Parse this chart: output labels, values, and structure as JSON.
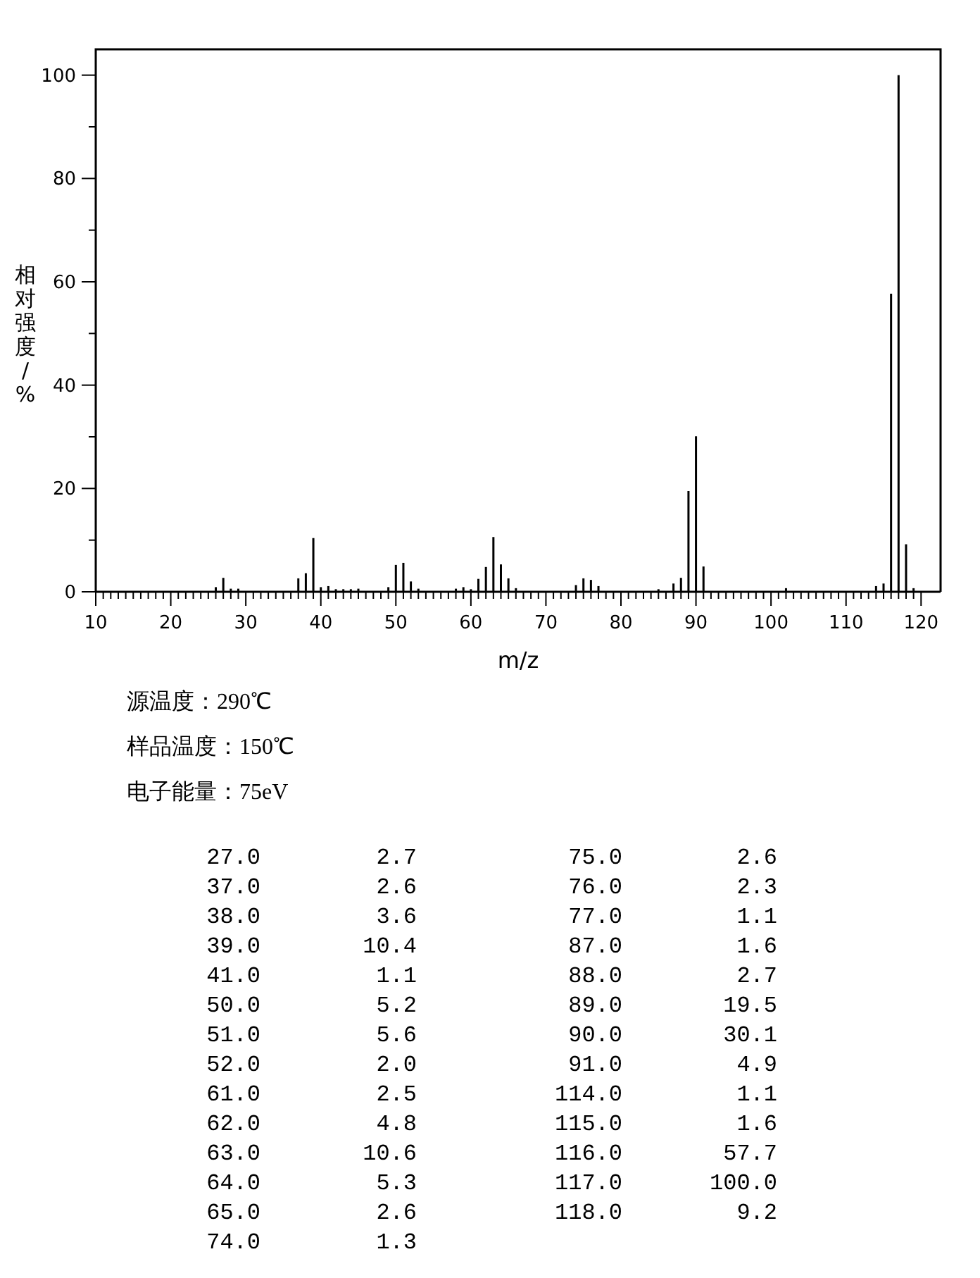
{
  "chart_data": [
    {
      "type": "bar",
      "xlabel": "m/z",
      "ylabel": "相对强度/%",
      "x": [
        26,
        27,
        28,
        29,
        37,
        38,
        39,
        40,
        41,
        42,
        43,
        44,
        45,
        49,
        50,
        51,
        52,
        53,
        58,
        59,
        60,
        61,
        62,
        63,
        64,
        65,
        66,
        74,
        75,
        76,
        77,
        85,
        87,
        88,
        89,
        90,
        91,
        102,
        114,
        115,
        116,
        117,
        118,
        119
      ],
      "values": [
        0.9,
        2.7,
        0.6,
        0.6,
        2.6,
        3.6,
        10.4,
        0.9,
        1.1,
        0.5,
        0.5,
        0.5,
        0.6,
        0.9,
        5.2,
        5.6,
        2.0,
        0.6,
        0.6,
        0.9,
        0.5,
        2.5,
        4.8,
        10.6,
        5.3,
        2.6,
        0.7,
        1.3,
        2.6,
        2.3,
        1.1,
        0.5,
        1.6,
        2.7,
        19.5,
        30.1,
        4.9,
        0.7,
        1.1,
        1.6,
        57.7,
        100.0,
        9.2,
        0.7
      ],
      "color": "#000000",
      "xlim": [
        10,
        122.6
      ],
      "ylim": [
        0,
        105
      ],
      "xticks": [
        10,
        {
          "value": 11,
          "label": null
        },
        {
          "value": 12,
          "label": null
        },
        {
          "value": 13,
          "label": null
        },
        {
          "value": 14,
          "label": null
        },
        {
          "value": 15,
          "label": null
        },
        {
          "value": 16,
          "label": null
        },
        {
          "value": 17,
          "label": null
        },
        {
          "value": 18,
          "label": null
        },
        {
          "value": 19,
          "label": null
        },
        20,
        {
          "value": 21,
          "label": null
        },
        {
          "value": 22,
          "label": null
        },
        {
          "value": 23,
          "label": null
        },
        {
          "value": 24,
          "label": null
        },
        {
          "value": 25,
          "label": null
        },
        {
          "value": 26,
          "label": null
        },
        {
          "value": 27,
          "label": null
        },
        {
          "value": 28,
          "label": null
        },
        {
          "value": 29,
          "label": null
        },
        30,
        {
          "value": 31,
          "label": null
        },
        {
          "value": 32,
          "label": null
        },
        {
          "value": 33,
          "label": null
        },
        {
          "value": 34,
          "label": null
        },
        {
          "value": 35,
          "label": null
        },
        {
          "value": 36,
          "label": null
        },
        {
          "value": 37,
          "label": null
        },
        {
          "value": 38,
          "label": null
        },
        {
          "value": 39,
          "label": null
        },
        40,
        {
          "value": 41,
          "label": null
        },
        {
          "value": 42,
          "label": null
        },
        {
          "value": 43,
          "label": null
        },
        {
          "value": 44,
          "label": null
        },
        {
          "value": 45,
          "label": null
        },
        {
          "value": 46,
          "label": null
        },
        {
          "value": 47,
          "label": null
        },
        {
          "value": 48,
          "label": null
        },
        {
          "value": 49,
          "label": null
        },
        50,
        {
          "value": 51,
          "label": null
        },
        {
          "value": 52,
          "label": null
        },
        {
          "value": 53,
          "label": null
        },
        {
          "value": 54,
          "label": null
        },
        {
          "value": 55,
          "label": null
        },
        {
          "value": 56,
          "label": null
        },
        {
          "value": 57,
          "label": null
        },
        {
          "value": 58,
          "label": null
        },
        {
          "value": 59,
          "label": null
        },
        60,
        {
          "value": 61,
          "label": null
        },
        {
          "value": 62,
          "label": null
        },
        {
          "value": 63,
          "label": null
        },
        {
          "value": 64,
          "label": null
        },
        {
          "value": 65,
          "label": null
        },
        {
          "value": 66,
          "label": null
        },
        {
          "value": 67,
          "label": null
        },
        {
          "value": 68,
          "label": null
        },
        {
          "value": 69,
          "label": null
        },
        70,
        {
          "value": 71,
          "label": null
        },
        {
          "value": 72,
          "label": null
        },
        {
          "value": 73,
          "label": null
        },
        {
          "value": 74,
          "label": null
        },
        {
          "value": 75,
          "label": null
        },
        {
          "value": 76,
          "label": null
        },
        {
          "value": 77,
          "label": null
        },
        {
          "value": 78,
          "label": null
        },
        {
          "value": 79,
          "label": null
        },
        80,
        {
          "value": 81,
          "label": null
        },
        {
          "value": 82,
          "label": null
        },
        {
          "value": 83,
          "label": null
        },
        {
          "value": 84,
          "label": null
        },
        {
          "value": 85,
          "label": null
        },
        {
          "value": 86,
          "label": null
        },
        {
          "value": 87,
          "label": null
        },
        {
          "value": 88,
          "label": null
        },
        {
          "value": 89,
          "label": null
        },
        90,
        {
          "value": 91,
          "label": null
        },
        {
          "value": 92,
          "label": null
        },
        {
          "value": 93,
          "label": null
        },
        {
          "value": 94,
          "label": null
        },
        {
          "value": 95,
          "label": null
        },
        {
          "value": 96,
          "label": null
        },
        {
          "value": 97,
          "label": null
        },
        {
          "value": 98,
          "label": null
        },
        {
          "value": 99,
          "label": null
        },
        100,
        {
          "value": 101,
          "label": null
        },
        {
          "value": 102,
          "label": null
        },
        {
          "value": 103,
          "label": null
        },
        {
          "value": 104,
          "label": null
        },
        {
          "value": 105,
          "label": null
        },
        {
          "value": 106,
          "label": null
        },
        {
          "value": 107,
          "label": null
        },
        {
          "value": 108,
          "label": null
        },
        {
          "value": 109,
          "label": null
        },
        110,
        {
          "value": 111,
          "label": null
        },
        {
          "value": 112,
          "label": null
        },
        {
          "value": 113,
          "label": null
        },
        {
          "value": 114,
          "label": null
        },
        {
          "value": 115,
          "label": null
        },
        {
          "value": 116,
          "label": null
        },
        {
          "value": 117,
          "label": null
        },
        {
          "value": 118,
          "label": null
        },
        {
          "value": 119,
          "label": null
        },
        120
      ],
      "yticks": [
        0,
        {
          "value": 10,
          "label": null
        },
        20,
        {
          "value": 30,
          "label": null
        },
        40,
        {
          "value": 50,
          "label": null
        },
        60,
        {
          "value": 70,
          "label": null
        },
        80,
        {
          "value": 90,
          "label": null
        },
        100
      ],
      "annotations": [
        "源温度：290℃",
        "样品温度：150℃",
        "电子能量：75eV"
      ]
    },
    {
      "type": "other",
      "categories": [
        "27.0",
        "37.0",
        "38.0",
        "39.0",
        "41.0",
        "50.0",
        "51.0",
        "52.0",
        "61.0",
        "62.0",
        "63.0",
        "64.0",
        "65.0",
        "74.0",
        "75.0",
        "76.0",
        "77.0",
        "87.0",
        "88.0",
        "89.0",
        "90.0",
        "91.0",
        "114.0",
        "115.0",
        "116.0",
        "117.0",
        "118.0"
      ],
      "values": [
        2.7,
        2.6,
        3.6,
        10.4,
        1.1,
        5.2,
        5.6,
        2.0,
        2.5,
        4.8,
        10.6,
        5.3,
        2.6,
        1.3,
        2.6,
        2.3,
        1.1,
        1.6,
        2.7,
        19.5,
        30.1,
        4.9,
        1.1,
        1.6,
        57.7,
        100.0,
        9.2
      ],
      "value_labels": [
        "2.7",
        "2.6",
        "3.6",
        "10.4",
        "1.1",
        "5.2",
        "5.6",
        "2.0",
        "2.5",
        "4.8",
        "10.6",
        "5.3",
        "2.6",
        "1.3",
        "2.6",
        "2.3",
        "1.1",
        "1.6",
        "2.7",
        "19.5",
        "30.1",
        "4.9",
        "1.1",
        "1.6",
        "57.7",
        "100.0",
        "9.2"
      ]
    }
  ]
}
